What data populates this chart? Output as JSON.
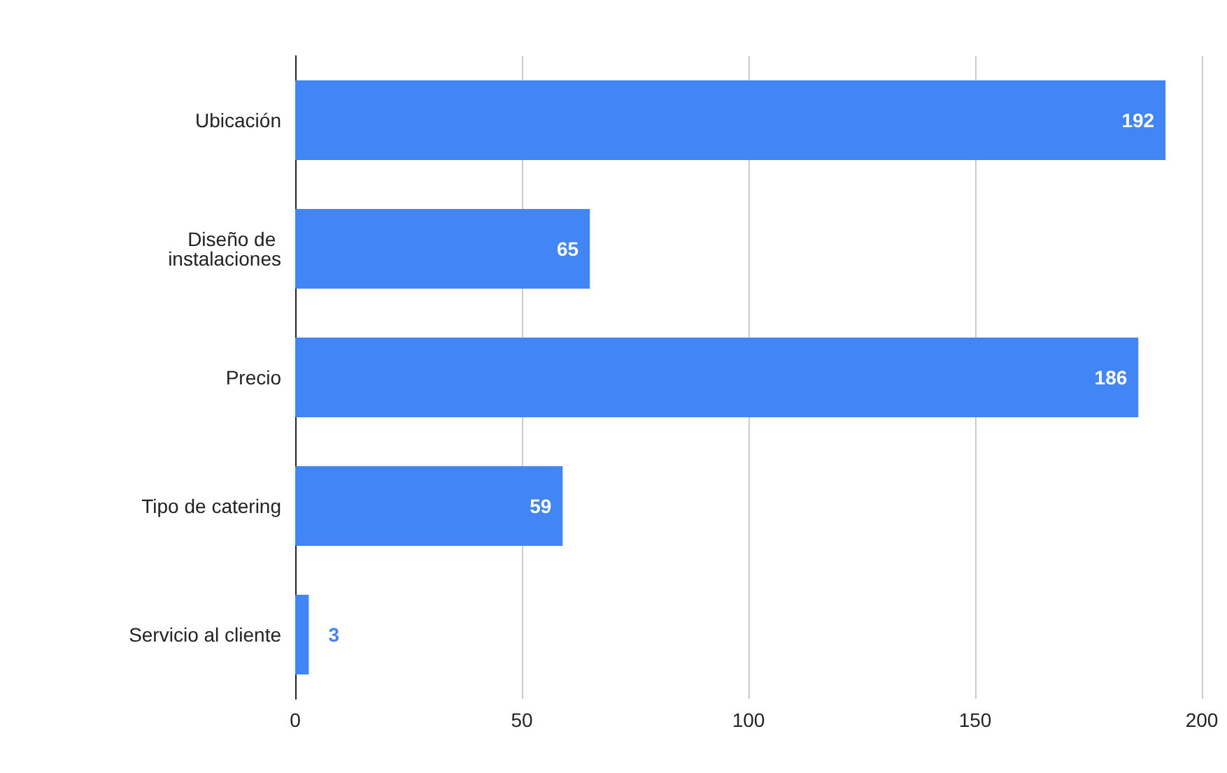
{
  "chart_data": {
    "type": "bar",
    "orientation": "horizontal",
    "categories": [
      "Ubicación",
      "Diseño de instalaciones",
      "Precio",
      "Tipo de catering",
      "Servicio al cliente"
    ],
    "values": [
      192,
      65,
      186,
      59,
      3
    ],
    "color": "#4285f4",
    "xlim": [
      0,
      200
    ],
    "xticks": [
      0,
      50,
      100,
      150,
      200
    ],
    "grid": "x",
    "data_labels": true
  }
}
